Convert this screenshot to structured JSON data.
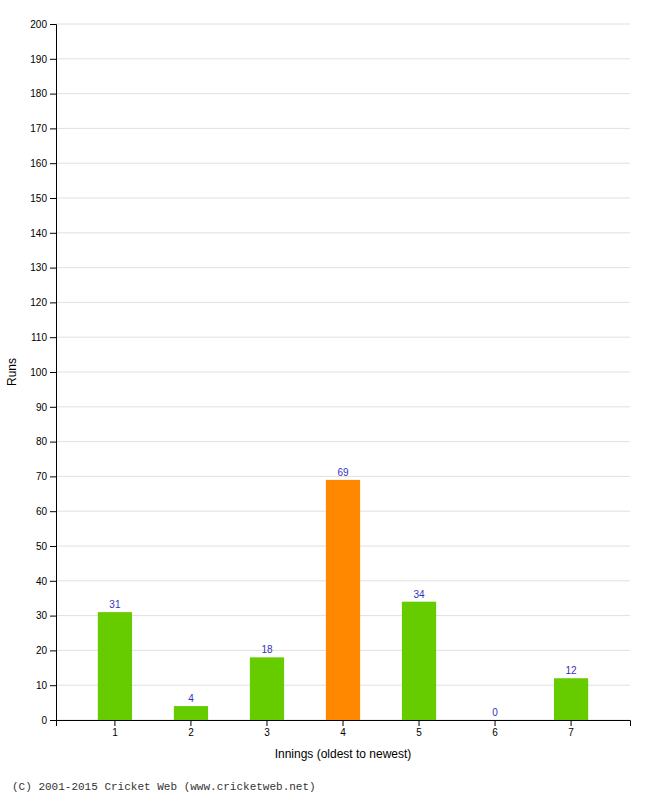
{
  "chart_data": {
    "type": "bar",
    "categories": [
      "1",
      "2",
      "3",
      "4",
      "5",
      "6",
      "7"
    ],
    "values": [
      31,
      4,
      18,
      69,
      34,
      0,
      12
    ],
    "colors": [
      "#66cc00",
      "#66cc00",
      "#66cc00",
      "#ff8800",
      "#66cc00",
      "#66cc00",
      "#66cc00"
    ],
    "xlabel": "Innings (oldest to newest)",
    "ylabel": "Runs",
    "ylim": [
      0,
      200
    ],
    "yticks": [
      0,
      10,
      20,
      30,
      40,
      50,
      60,
      70,
      80,
      90,
      100,
      110,
      120,
      130,
      140,
      150,
      160,
      170,
      180,
      190,
      200
    ],
    "grid": true,
    "data_labels": true,
    "annotations": [
      "(C) 2001-2015 Cricket Web (www.cricketweb.net)"
    ]
  }
}
